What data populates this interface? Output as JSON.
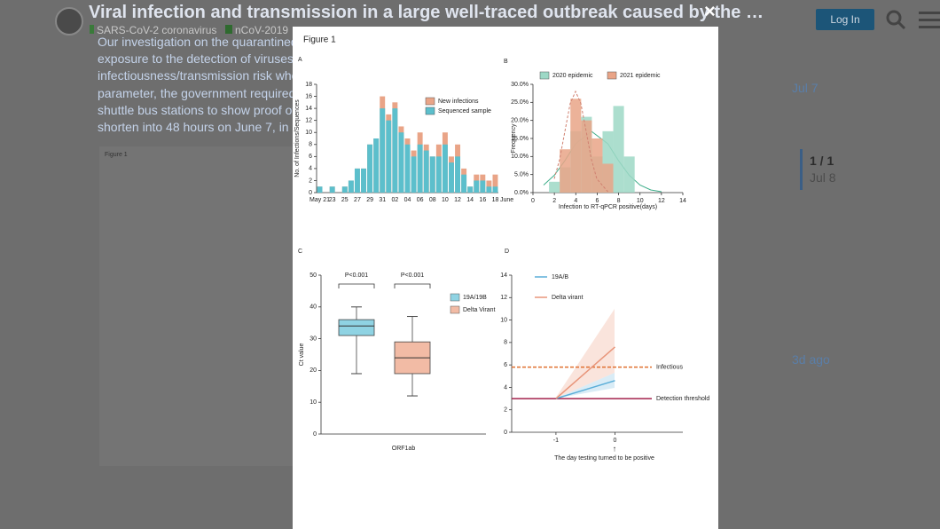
{
  "header": {
    "title": "Viral infection and transmission in a large well-traced outbreak caused by the …",
    "tags": [
      "SARS-CoV-2 coronavirus",
      "nCoV-2019"
    ],
    "login": "Log In"
  },
  "post": {
    "lines": [
      "Our investigation on the quarantined",
      "exposure to the detection of viruses",
      "infectiousness/transmission risk whe",
      "parameter, the government required",
      "shuttle bus stations to show proof of",
      "shorten into 48 hours on June 7, in c"
    ],
    "figure_caption": "Figure 1"
  },
  "timeline": {
    "start": "Jul 7",
    "position": "1 / 1",
    "current": "Jul 8",
    "end": "3d ago"
  },
  "lightbox": {
    "close": "×",
    "caption": "Figure 1",
    "panels": [
      {
        "label": "A",
        "type": "bar",
        "y_label": "No. of Infections/Sequences",
        "x_end_label": "June",
        "categories": [
          "May 21",
          null,
          "23",
          null,
          "25",
          null,
          "27",
          null,
          "29",
          null,
          "31",
          null,
          "02",
          null,
          "04",
          null,
          "06",
          null,
          "08",
          null,
          "10",
          null,
          "12",
          null,
          "14",
          null,
          "16",
          null,
          "18"
        ],
        "series": [
          {
            "name": "New infections",
            "color": "#e9a487",
            "values": [
              1,
              0,
              1,
              0,
              1,
              2,
              4,
              4,
              8,
              9,
              16,
              13,
              15,
              11,
              9,
              7,
              10,
              8,
              6,
              8,
              10,
              6,
              8,
              4,
              1,
              3,
              3,
              2,
              3
            ]
          },
          {
            "name": "Sequenced sample",
            "color": "#5cbfcc",
            "values": [
              1,
              0,
              1,
              0,
              1,
              2,
              4,
              4,
              8,
              9,
              14,
              12,
              14,
              10,
              8,
              6,
              8,
              7,
              6,
              6,
              8,
              5,
              6,
              3,
              1,
              2,
              2,
              1,
              1
            ]
          }
        ],
        "ylim": [
          0,
          18
        ],
        "yticks": [
          0,
          2,
          4,
          6,
          8,
          10,
          12,
          14,
          16,
          18
        ]
      },
      {
        "label": "B",
        "type": "histogram",
        "x_label": "Infection to RT-qPCR positive(days)",
        "y_label": "Frequency",
        "series": [
          {
            "name": "2020 epidemic",
            "color": "#9dd8c6",
            "x": [
              2,
              3,
              4,
              5,
              6,
              7,
              8,
              9
            ],
            "values": [
              3,
              7,
              17,
              21,
              10,
              17,
              24,
              10
            ]
          },
          {
            "name": "2021 epidemic",
            "color": "#e9a487",
            "x": [
              3,
              4,
              5,
              6,
              7
            ],
            "values": [
              12,
              26,
              20,
              15,
              8
            ]
          }
        ],
        "xlim": [
          0,
          14
        ],
        "xticks": [
          0,
          2,
          4,
          6,
          8,
          10,
          12,
          14
        ],
        "ylim": [
          0,
          30
        ],
        "yticks": [
          {
            "value": 0,
            "label": "0.0%"
          },
          {
            "value": 5,
            "label": "5.0%"
          },
          {
            "value": 10,
            "label": "10.0%"
          },
          {
            "value": 15,
            "label": "15.0%"
          },
          {
            "value": 20,
            "label": "20.0%"
          },
          {
            "value": 25,
            "label": "25.0%"
          },
          {
            "value": 30,
            "label": "30.0%"
          }
        ]
      },
      {
        "label": "C",
        "type": "box",
        "x_label": "ORF1ab",
        "y_label": "Ct value",
        "annotations": [
          "P<0.001",
          "P<0.001"
        ],
        "series": [
          {
            "name": "19A/19B",
            "color": "#8fd3e3",
            "min": 19,
            "q1": 31,
            "median": 34,
            "q3": 36,
            "max": 40
          },
          {
            "name": "Delta Virant",
            "color": "#f2bba5",
            "min": 12,
            "q1": 19,
            "median": 24,
            "q3": 29,
            "max": 37
          }
        ],
        "ylim": [
          0,
          50
        ],
        "yticks": [
          0,
          10,
          20,
          30,
          40,
          50
        ]
      },
      {
        "label": "D",
        "type": "line",
        "x_label": "The day testing turned to be positive",
        "series": [
          {
            "name": "19A/B",
            "color": "#5aaed8",
            "x": [
              -1,
              0
            ],
            "values": [
              3,
              4.6
            ]
          },
          {
            "name": "Delta virant",
            "color": "#e8957a",
            "x": [
              -1,
              0
            ],
            "values": [
              3,
              7.6
            ]
          }
        ],
        "thresholds": [
          {
            "label": "Infectious",
            "value": 5.8,
            "color": "#e07030",
            "dashed": true
          },
          {
            "label": "Detection threshold",
            "value": 3,
            "color": "#a3204c",
            "dashed": false
          }
        ],
        "xlim": [
          -1.75,
          1.15
        ],
        "xticks": [
          -1,
          0
        ],
        "ylim": [
          0,
          14
        ],
        "yticks": [
          0,
          2,
          4,
          6,
          8,
          10,
          12,
          14
        ]
      }
    ]
  }
}
